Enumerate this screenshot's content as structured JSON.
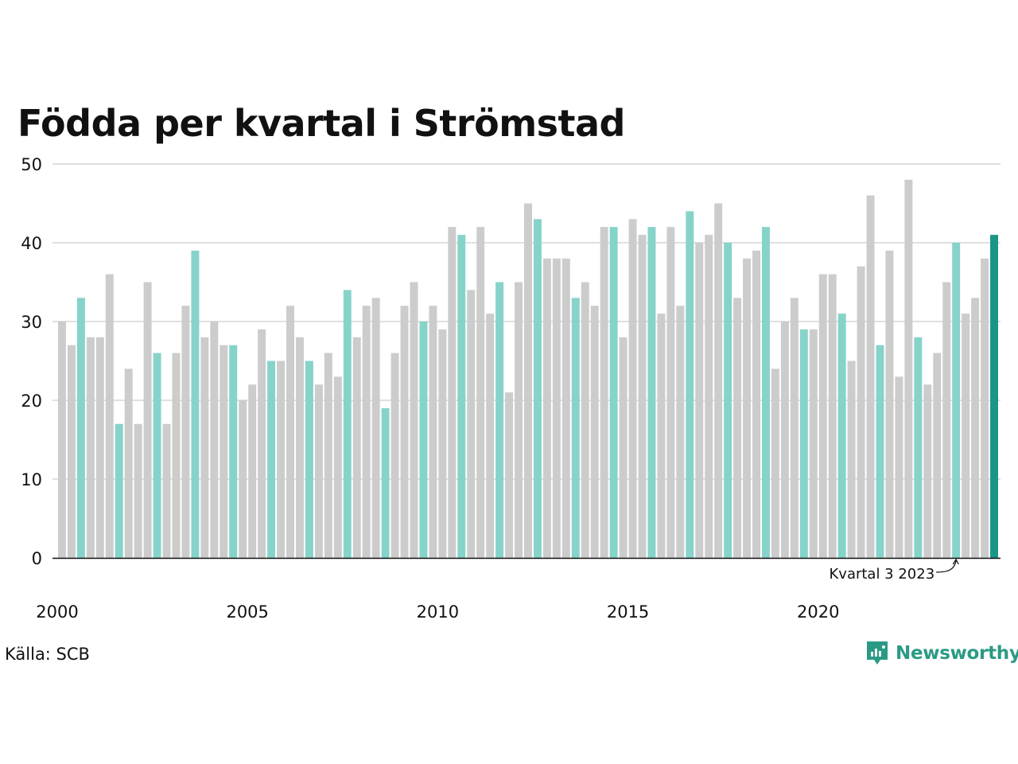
{
  "title": "Födda per kvartal i Strömstad",
  "source": "Källa: SCB",
  "brand": {
    "name": "Newsworthy",
    "icon": "newsworthy-logo-icon"
  },
  "colors": {
    "highlight": "#86d3ca",
    "other": "#cccccc",
    "latest": "#1a9686",
    "grid": "#e0e0e0",
    "axis": "#111111"
  },
  "chart_data": {
    "type": "bar",
    "title": "Födda per kvartal i Strömstad",
    "xlabel": "",
    "ylabel": "",
    "ylim": [
      0,
      50
    ],
    "yticks": [
      0,
      10,
      20,
      30,
      40,
      50
    ],
    "xticks": [
      "2000",
      "2005",
      "2010",
      "2015",
      "2020"
    ],
    "grid": true,
    "highlight_quarter": 3,
    "annotation": "Kvartal 3 2023",
    "annotation_target": "2023 Q3",
    "quarters": [
      "2000 Q1",
      "2000 Q2",
      "2000 Q3",
      "2000 Q4",
      "2001 Q1",
      "2001 Q2",
      "2001 Q3",
      "2001 Q4",
      "2002 Q1",
      "2002 Q2",
      "2002 Q3",
      "2002 Q4",
      "2003 Q1",
      "2003 Q2",
      "2003 Q3",
      "2003 Q4",
      "2004 Q1",
      "2004 Q2",
      "2004 Q3",
      "2004 Q4",
      "2005 Q1",
      "2005 Q2",
      "2005 Q3",
      "2005 Q4",
      "2006 Q1",
      "2006 Q2",
      "2006 Q3",
      "2006 Q4",
      "2007 Q1",
      "2007 Q2",
      "2007 Q3",
      "2007 Q4",
      "2008 Q1",
      "2008 Q2",
      "2008 Q3",
      "2008 Q4",
      "2009 Q1",
      "2009 Q2",
      "2009 Q3",
      "2009 Q4",
      "2010 Q1",
      "2010 Q2",
      "2010 Q3",
      "2010 Q4",
      "2011 Q1",
      "2011 Q2",
      "2011 Q3",
      "2011 Q4",
      "2012 Q1",
      "2012 Q2",
      "2012 Q3",
      "2012 Q4",
      "2013 Q1",
      "2013 Q2",
      "2013 Q3",
      "2013 Q4",
      "2014 Q1",
      "2014 Q2",
      "2014 Q3",
      "2014 Q4",
      "2015 Q1",
      "2015 Q2",
      "2015 Q3",
      "2015 Q4",
      "2016 Q1",
      "2016 Q2",
      "2016 Q3",
      "2016 Q4",
      "2017 Q1",
      "2017 Q2",
      "2017 Q3",
      "2017 Q4",
      "2018 Q1",
      "2018 Q2",
      "2018 Q3",
      "2018 Q4",
      "2019 Q1",
      "2019 Q2",
      "2019 Q3",
      "2019 Q4",
      "2020 Q1",
      "2020 Q2",
      "2020 Q3",
      "2020 Q4",
      "2021 Q1",
      "2021 Q2",
      "2021 Q3",
      "2021 Q4",
      "2022 Q1",
      "2022 Q2",
      "2022 Q3",
      "2022 Q4",
      "2023 Q1",
      "2023 Q2",
      "2023 Q3",
      "2023 Q4",
      "2024 Q1",
      "2024 Q2",
      "2024 Q3"
    ],
    "values": [
      30,
      27,
      33,
      28,
      28,
      36,
      17,
      24,
      17,
      35,
      26,
      17,
      26,
      32,
      39,
      28,
      30,
      27,
      27,
      20,
      22,
      29,
      25,
      25,
      32,
      28,
      25,
      22,
      26,
      23,
      34,
      28,
      32,
      33,
      19,
      26,
      32,
      35,
      30,
      32,
      29,
      42,
      41,
      34,
      42,
      31,
      35,
      21,
      35,
      45,
      43,
      38,
      38,
      38,
      33,
      35,
      32,
      42,
      42,
      28,
      43,
      41,
      42,
      31,
      42,
      32,
      44,
      40,
      41,
      45,
      40,
      33,
      38,
      39,
      42,
      24,
      30,
      33,
      29,
      29,
      36,
      36,
      31,
      25,
      37,
      46,
      27,
      39,
      23,
      48,
      28,
      22,
      26,
      35,
      40,
      31,
      33,
      38,
      41
    ]
  }
}
